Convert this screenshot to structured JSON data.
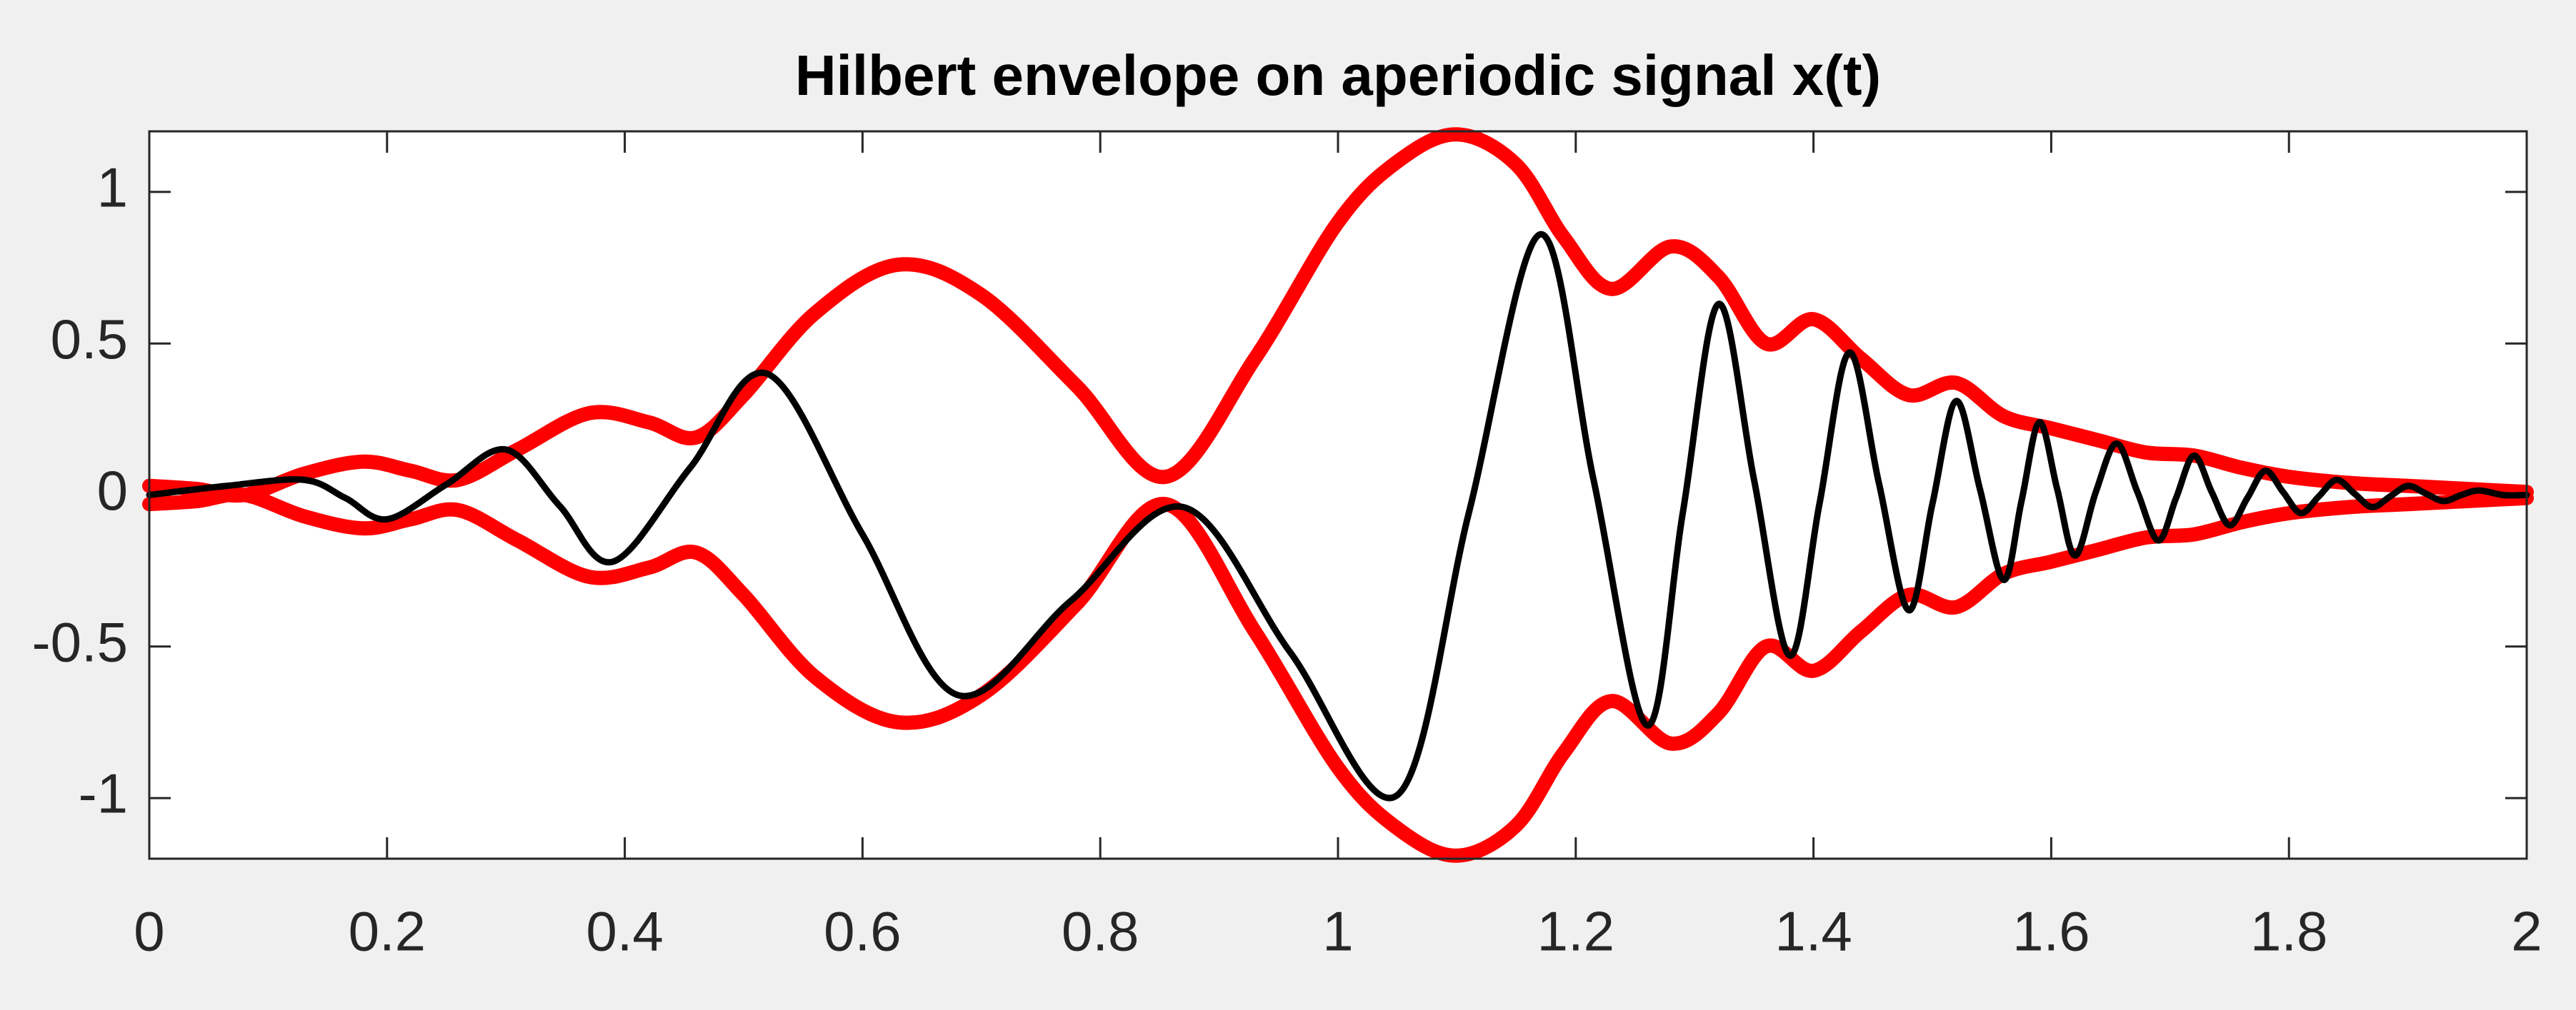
{
  "chart_data": {
    "type": "line",
    "title": "Hilbert envelope on aperiodic signal x(t)",
    "xlim": [
      0,
      2
    ],
    "ylim": [
      -1.2,
      1.2
    ],
    "xticks": [
      0,
      0.2,
      0.4,
      0.6,
      0.8,
      1,
      1.2,
      1.4,
      1.6,
      1.8,
      2
    ],
    "yticks": [
      -1,
      -0.5,
      0,
      0.5,
      1
    ],
    "grid": false,
    "series": [
      {
        "color": "#000000",
        "x": [
          0,
          0.065,
          0.13,
          0.165,
          0.2,
          0.25,
          0.3,
          0.345,
          0.39,
          0.455,
          0.52,
          0.6,
          0.68,
          0.775,
          0.87,
          0.96,
          1.05,
          1.11,
          1.17,
          1.215,
          1.26,
          1.29,
          1.32,
          1.35,
          1.38,
          1.405,
          1.43,
          1.455,
          1.48,
          1.5,
          1.52,
          1.54,
          1.56,
          1.575,
          1.59,
          1.605,
          1.62,
          1.6375,
          1.655,
          1.6725,
          1.69,
          1.705,
          1.72,
          1.735,
          1.75,
          1.765,
          1.78,
          1.795,
          1.81,
          1.825,
          1.84,
          1.855,
          1.87,
          1.885,
          1.9,
          1.915,
          1.93,
          1.945,
          1.96,
          1.98,
          2.0
        ],
        "values": [
          0,
          0.03,
          0.05,
          -0.01,
          -0.08,
          0.035,
          0.15,
          -0.035,
          -0.22,
          0.09,
          0.4,
          -0.13,
          -0.66,
          -0.35,
          -0.04,
          -0.52,
          -0.99,
          -0.06,
          0.86,
          0.05,
          -0.76,
          -0.06,
          0.63,
          0.05,
          -0.53,
          -0.03,
          0.47,
          0.04,
          -0.38,
          -0.03,
          0.31,
          0.02,
          -0.28,
          -0.02,
          0.24,
          0.02,
          -0.2,
          0.01,
          0.17,
          0.01,
          -0.15,
          -0.01,
          0.13,
          0.01,
          -0.1,
          -0.01,
          0.08,
          0.01,
          -0.06,
          -0.005,
          0.05,
          0.005,
          -0.04,
          -0.005,
          0.03,
          0.005,
          -0.02,
          0,
          0.015,
          0,
          0
        ]
      },
      {
        "color": "#ff0000",
        "x": [
          0,
          0.04,
          0.08,
          0.13,
          0.18,
          0.22,
          0.26,
          0.31,
          0.37,
          0.42,
          0.46,
          0.5,
          0.56,
          0.63,
          0.7,
          0.78,
          0.855,
          0.93,
          1.0,
          1.05,
          1.1,
          1.15,
          1.19,
          1.23,
          1.28,
          1.32,
          1.36,
          1.4,
          1.44,
          1.48,
          1.52,
          1.56,
          1.6,
          1.64,
          1.68,
          1.72,
          1.76,
          1.8,
          1.85,
          1.9,
          1.95,
          2.0
        ],
        "values": [
          0.03,
          0.02,
          0.0,
          0.07,
          0.11,
          0.08,
          0.05,
          0.15,
          0.27,
          0.24,
          0.19,
          0.33,
          0.6,
          0.76,
          0.66,
          0.36,
          0.06,
          0.45,
          0.9,
          1.1,
          1.19,
          1.09,
          0.85,
          0.68,
          0.82,
          0.72,
          0.5,
          0.58,
          0.45,
          0.33,
          0.37,
          0.26,
          0.22,
          0.18,
          0.14,
          0.13,
          0.09,
          0.06,
          0.04,
          0.03,
          0.02,
          0.01
        ]
      },
      {
        "color": "#ff0000",
        "x": [
          0,
          0.04,
          0.08,
          0.13,
          0.18,
          0.22,
          0.26,
          0.31,
          0.37,
          0.42,
          0.46,
          0.5,
          0.56,
          0.63,
          0.7,
          0.78,
          0.855,
          0.93,
          1.0,
          1.05,
          1.1,
          1.15,
          1.19,
          1.23,
          1.28,
          1.32,
          1.36,
          1.4,
          1.44,
          1.48,
          1.52,
          1.56,
          1.6,
          1.64,
          1.68,
          1.72,
          1.76,
          1.8,
          1.85,
          1.9,
          1.95,
          2.0
        ],
        "values": [
          -0.03,
          -0.02,
          0.0,
          -0.07,
          -0.11,
          -0.08,
          -0.05,
          -0.15,
          -0.27,
          -0.24,
          -0.19,
          -0.33,
          -0.6,
          -0.75,
          -0.66,
          -0.36,
          -0.03,
          -0.45,
          -0.9,
          -1.1,
          -1.19,
          -1.09,
          -0.85,
          -0.68,
          -0.82,
          -0.72,
          -0.5,
          -0.58,
          -0.45,
          -0.33,
          -0.37,
          -0.26,
          -0.22,
          -0.18,
          -0.14,
          -0.13,
          -0.09,
          -0.06,
          -0.04,
          -0.03,
          -0.02,
          -0.01
        ]
      }
    ]
  }
}
